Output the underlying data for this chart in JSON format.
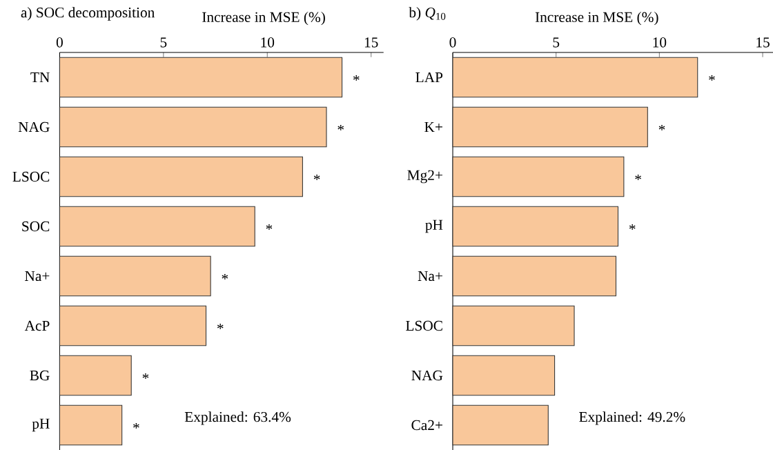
{
  "chart_data": [
    {
      "type": "bar",
      "orientation": "horizontal",
      "title": "a) SOC decomposition",
      "xlabel": "Increase in MSE (%)",
      "categories": [
        "TN",
        "NAG",
        "LSOC",
        "SOC",
        "Na+",
        "AcP",
        "BG",
        "pH"
      ],
      "values": [
        13.6,
        12.85,
        11.7,
        9.4,
        7.27,
        7.05,
        3.45,
        3.0
      ],
      "color": "#f9c79a",
      "xlim": [
        0,
        15.6
      ],
      "xticks": [
        0,
        5,
        10,
        15
      ],
      "annotations": [
        {
          "text": "*",
          "x": 13.6,
          "y": "TN"
        },
        {
          "text": "*",
          "x": 12.85,
          "y": "NAG"
        },
        {
          "text": "*",
          "x": 11.7,
          "y": "LSOC"
        },
        {
          "text": "*",
          "x": 9.4,
          "y": "SOC"
        },
        {
          "text": "*",
          "x": 7.27,
          "y": "Na+"
        },
        {
          "text": "*",
          "x": 7.05,
          "y": "AcP"
        },
        {
          "text": "*",
          "x": 3.45,
          "y": "BG"
        },
        {
          "text": "*",
          "x": 3.0,
          "y": "pH"
        },
        "Explained: 63.4%"
      ]
    },
    {
      "type": "bar",
      "orientation": "horizontal",
      "title": "b) *Q*$_{10}$",
      "xlabel": "Increase in MSE (%)",
      "categories": [
        "LAP",
        "K+",
        "Mg2+",
        "pH",
        "Na+",
        "LSOC",
        "NAG",
        "Ca2+"
      ],
      "values": [
        11.85,
        9.43,
        8.28,
        8.0,
        7.9,
        5.88,
        4.93,
        4.62
      ],
      "color": "#f9c79a",
      "xlim": [
        0,
        15.5
      ],
      "xticks": [
        0,
        5,
        10,
        15
      ],
      "annotations": [
        {
          "text": "*",
          "x": 11.85,
          "y": "LAP"
        },
        {
          "text": "*",
          "x": 9.43,
          "y": "K+"
        },
        {
          "text": "*",
          "x": 8.28,
          "y": "Mg2+"
        },
        {
          "text": "*",
          "x": 8.0,
          "y": "pH"
        },
        "Explained: 49.2%"
      ]
    }
  ]
}
